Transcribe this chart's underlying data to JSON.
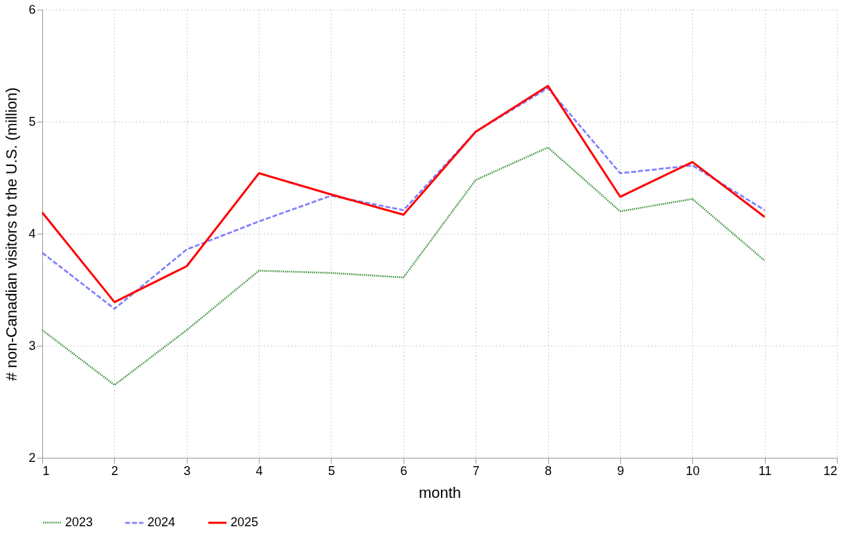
{
  "chart_data": {
    "type": "line",
    "xlabel": "month",
    "ylabel": "# non-Canadian visitors to the U.S. (million)",
    "x": [
      1,
      2,
      3,
      4,
      5,
      6,
      7,
      8,
      9,
      10,
      11
    ],
    "series": [
      {
        "name": "2023",
        "color": "#2e8b2e",
        "line_style": "dotted",
        "values": [
          3.14,
          2.65,
          3.14,
          3.67,
          3.65,
          3.61,
          4.48,
          4.77,
          4.2,
          4.31,
          3.76
        ]
      },
      {
        "name": "2024",
        "color": "#8080ff",
        "line_style": "dashed",
        "values": [
          3.83,
          3.33,
          3.86,
          4.11,
          4.34,
          4.21,
          4.91,
          5.3,
          4.54,
          4.61,
          4.21
        ]
      },
      {
        "name": "2025",
        "color": "#ff0000",
        "line_style": "solid",
        "values": [
          4.19,
          3.39,
          3.71,
          4.54,
          4.35,
          4.17,
          4.91,
          5.32,
          4.33,
          4.64,
          4.15
        ]
      }
    ],
    "xlim": [
      1,
      12
    ],
    "xticks": [
      1,
      2,
      3,
      4,
      5,
      6,
      7,
      8,
      9,
      10,
      11,
      12
    ],
    "ylim": [
      2,
      6
    ],
    "yticks": [
      2,
      3,
      4,
      5,
      6
    ],
    "grid": true,
    "legend": "bottom",
    "marker": "none"
  }
}
